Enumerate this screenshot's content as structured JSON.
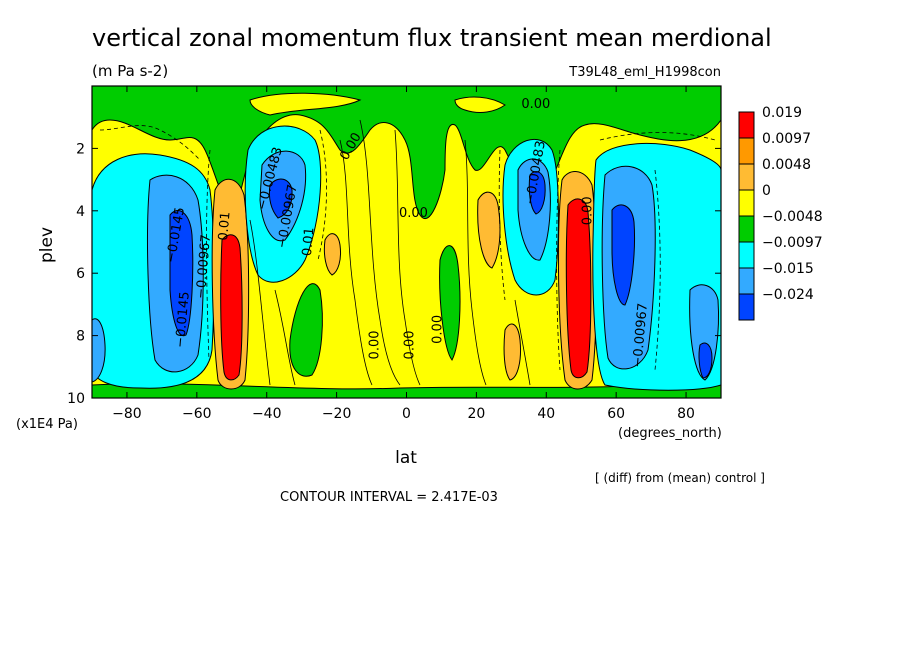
{
  "chart_data": {
    "type": "heatmap",
    "title": "vertical zonal momentum flux transient mean merdional",
    "units": "(m Pa s-2)",
    "run_label": "T39L48_eml_H1998con",
    "xlabel": "lat",
    "xunit": "(degrees_north)",
    "ylabel": "plev",
    "yunit": "(x1E4 Pa)",
    "xlim": [
      -90,
      90
    ],
    "ylim": [
      0,
      10
    ],
    "y_inverted": true,
    "x_ticks": [
      -80,
      -60,
      -40,
      -20,
      0,
      20,
      40,
      60,
      80
    ],
    "y_ticks": [
      2,
      4,
      6,
      8,
      10
    ],
    "legend_levels": [
      "0.019",
      "0.0097",
      "0.0048",
      "0",
      "-0.0048",
      "-0.0097",
      "-0.015",
      "-0.024"
    ],
    "legend_colors": [
      "#ff0000",
      "#ff9900",
      "#ffbb33",
      "#ffff00",
      "#00cc00",
      "#00ffff",
      "#33aaff",
      "#0044ff"
    ],
    "contour_labels": [
      "0.00",
      "0.00",
      "0.00",
      "0.00",
      "0.00",
      "0.00",
      "0.00",
      "-0.0145",
      "-0.00967",
      "-0.00483",
      "-0.00967",
      "-0.00483",
      "-0.00967",
      "-0.0145",
      "0.01",
      "0.01"
    ],
    "contour_interval": "CONTOUR INTERVAL = 2.417E-03",
    "note": "[ (diff) from (mean) control ]"
  }
}
